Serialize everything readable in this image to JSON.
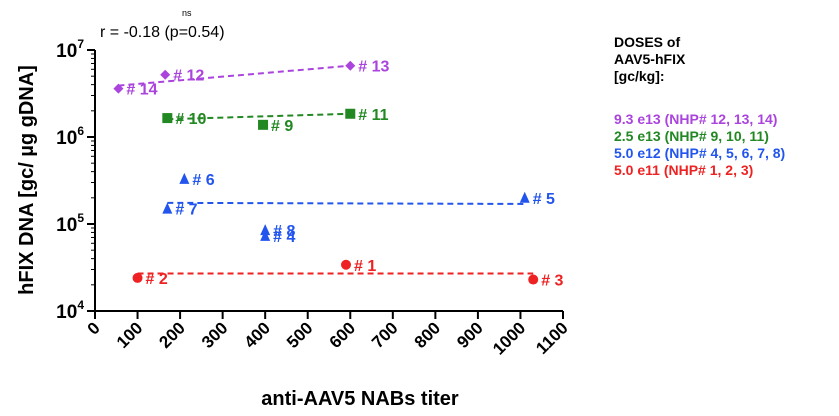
{
  "chart_data": {
    "type": "scatter",
    "xlabel": "anti-AAV5 NABs titer",
    "ylabel": "hFIX DNA [gc/ µg gDNA]",
    "xlim": [
      0,
      1100
    ],
    "ylim": [
      10000,
      10000000
    ],
    "yscale": "log",
    "xticks": [
      "0",
      "100",
      "200",
      "300",
      "400",
      "500",
      "600",
      "700",
      "800",
      "900",
      "1000",
      "1100"
    ],
    "yticks": [
      {
        "base": "10",
        "exp": "4",
        "value": 10000
      },
      {
        "base": "10",
        "exp": "5",
        "value": 100000
      },
      {
        "base": "10",
        "exp": "6",
        "value": 1000000
      },
      {
        "base": "10",
        "exp": "7",
        "value": 10000000
      }
    ],
    "annotation": {
      "text": "r = -0.18 (p=0.54)",
      "sig": "ns"
    },
    "legend_title": [
      "DOSES of",
      "AAV5-hFIX",
      "[gc/kg]:"
    ],
    "series": [
      {
        "name": "9.3 e13 (NHP# 12, 13, 14)",
        "color": "#aa44dd",
        "marker": "diamond",
        "points": [
          {
            "x": 55,
            "y": 3600000,
            "label": "# 14"
          },
          {
            "x": 165,
            "y": 5200000,
            "label": "# 12"
          },
          {
            "x": 600,
            "y": 6600000,
            "label": "# 13"
          }
        ],
        "trend": {
          "x": [
            55,
            600
          ],
          "y": [
            3900000,
            6600000
          ]
        }
      },
      {
        "name": "2.5 e13 (NHP# 9, 10, 11)",
        "color": "#228822",
        "marker": "square",
        "points": [
          {
            "x": 170,
            "y": 1650000,
            "label": "# 10"
          },
          {
            "x": 395,
            "y": 1380000,
            "label": "# 9"
          },
          {
            "x": 600,
            "y": 1850000,
            "label": "# 11"
          }
        ],
        "trend": {
          "x": [
            170,
            600
          ],
          "y": [
            1600000,
            1850000
          ]
        }
      },
      {
        "name": "5.0 e12 (NHP# 4, 5, 6, 7, 8)",
        "color": "#2255ee",
        "marker": "triangle",
        "points": [
          {
            "x": 210,
            "y": 330000,
            "label": "# 6"
          },
          {
            "x": 170,
            "y": 150000,
            "label": "# 7"
          },
          {
            "x": 400,
            "y": 85000,
            "label": "# 8"
          },
          {
            "x": 400,
            "y": 73000,
            "label": "# 4"
          },
          {
            "x": 1010,
            "y": 200000,
            "label": "# 5"
          }
        ],
        "trend": {
          "x": [
            170,
            1010
          ],
          "y": [
            175000,
            170000
          ]
        }
      },
      {
        "name": "5.0 e11 (NHP# 1, 2, 3)",
        "color": "#ee2222",
        "marker": "circle",
        "points": [
          {
            "x": 590,
            "y": 34000,
            "label": "# 1"
          },
          {
            "x": 100,
            "y": 24000,
            "label": "# 2"
          },
          {
            "x": 1030,
            "y": 23000,
            "label": "# 3"
          }
        ],
        "trend": {
          "x": [
            100,
            1030
          ],
          "y": [
            27000,
            27000
          ]
        }
      }
    ]
  }
}
